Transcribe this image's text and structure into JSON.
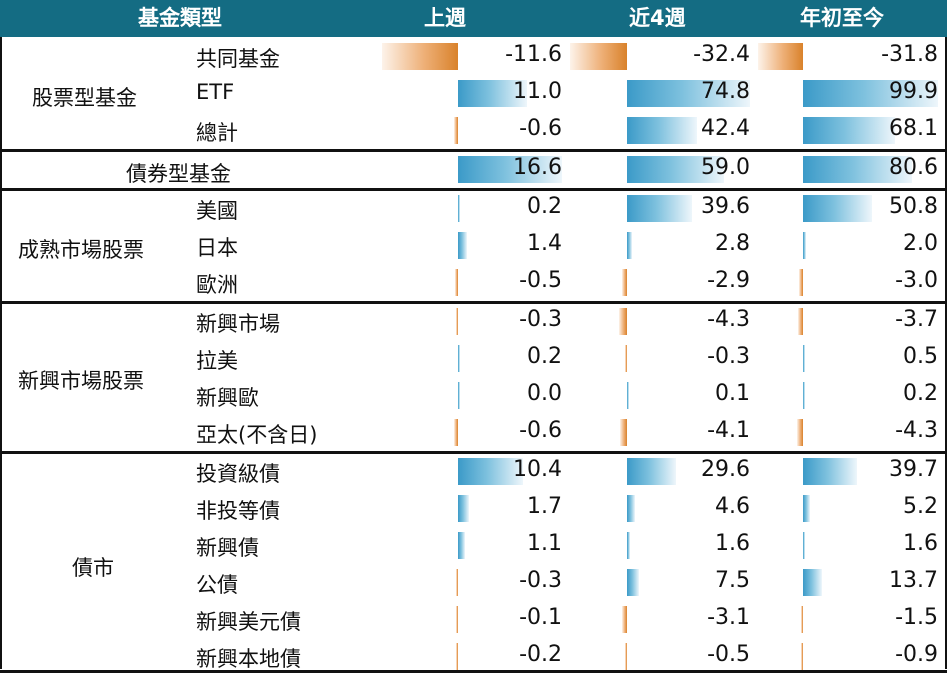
{
  "header": {
    "col0": "基金類型",
    "col1": "上週",
    "col2": "近4週",
    "col3": "年初至今"
  },
  "chart_data": {
    "type": "table",
    "columns": [
      "上週",
      "近4週",
      "年初至今"
    ],
    "groups": [
      {
        "name": "股票型基金",
        "rows": [
          {
            "label": "共同基金",
            "values": [
              -11.6,
              -32.4,
              -31.8
            ],
            "text": [
              "-11.6",
              "-32.4",
              "-31.8"
            ]
          },
          {
            "label": "ETF",
            "values": [
              11.0,
              74.8,
              99.9
            ],
            "text": [
              "11.0",
              "74.8",
              "99.9"
            ]
          },
          {
            "label": "總計",
            "values": [
              -0.6,
              42.4,
              68.1
            ],
            "text": [
              "-0.6",
              "42.4",
              "68.1"
            ]
          }
        ]
      },
      {
        "name": "債券型基金",
        "rows": [
          {
            "label": "",
            "values": [
              16.6,
              59.0,
              80.6
            ],
            "text": [
              "16.6",
              "59.0",
              "80.6"
            ]
          }
        ]
      },
      {
        "name": "成熟市場股票",
        "rows": [
          {
            "label": "美國",
            "values": [
              0.2,
              39.6,
              50.8
            ],
            "text": [
              "0.2",
              "39.6",
              "50.8"
            ]
          },
          {
            "label": "日本",
            "values": [
              1.4,
              2.8,
              2.0
            ],
            "text": [
              "1.4",
              "2.8",
              "2.0"
            ]
          },
          {
            "label": "歐洲",
            "values": [
              -0.5,
              -2.9,
              -3.0
            ],
            "text": [
              "-0.5",
              "-2.9",
              "-3.0"
            ]
          }
        ]
      },
      {
        "name": "新興市場股票",
        "rows": [
          {
            "label": "新興市場",
            "values": [
              -0.3,
              -4.3,
              -3.7
            ],
            "text": [
              "-0.3",
              "-4.3",
              "-3.7"
            ]
          },
          {
            "label": "拉美",
            "values": [
              0.2,
              -0.3,
              0.5
            ],
            "text": [
              "0.2",
              "-0.3",
              "0.5"
            ]
          },
          {
            "label": "新興歐",
            "values": [
              0.0,
              0.1,
              0.2
            ],
            "text": [
              "0.0",
              "0.1",
              "0.2"
            ]
          },
          {
            "label": "亞太(不含日)",
            "values": [
              -0.6,
              -4.1,
              -4.3
            ],
            "text": [
              "-0.6",
              "-4.1",
              "-4.3"
            ]
          }
        ]
      },
      {
        "name": "債市",
        "rows": [
          {
            "label": "投資級債",
            "values": [
              10.4,
              29.6,
              39.7
            ],
            "text": [
              "10.4",
              "29.6",
              "39.7"
            ]
          },
          {
            "label": "非投等債",
            "values": [
              1.7,
              4.6,
              5.2
            ],
            "text": [
              "1.7",
              "4.6",
              "5.2"
            ]
          },
          {
            "label": "新興債",
            "values": [
              1.1,
              1.6,
              1.6
            ],
            "text": [
              "1.1",
              "1.6",
              "1.6"
            ]
          },
          {
            "label": "公債",
            "values": [
              -0.3,
              7.5,
              13.7
            ],
            "text": [
              "-0.3",
              "7.5",
              "13.7"
            ]
          },
          {
            "label": "新興美元債",
            "values": [
              -0.1,
              -3.1,
              -1.5
            ],
            "text": [
              "-0.1",
              "-3.1",
              "-1.5"
            ]
          },
          {
            "label": "新興本地債",
            "values": [
              -0.2,
              -0.5,
              -0.9
            ],
            "text": [
              "-0.2",
              "-0.5",
              "-0.9"
            ]
          }
        ]
      }
    ],
    "colors": {
      "positive": "#3b9ac8",
      "negative": "#d9822b",
      "header": "#146c83"
    }
  }
}
